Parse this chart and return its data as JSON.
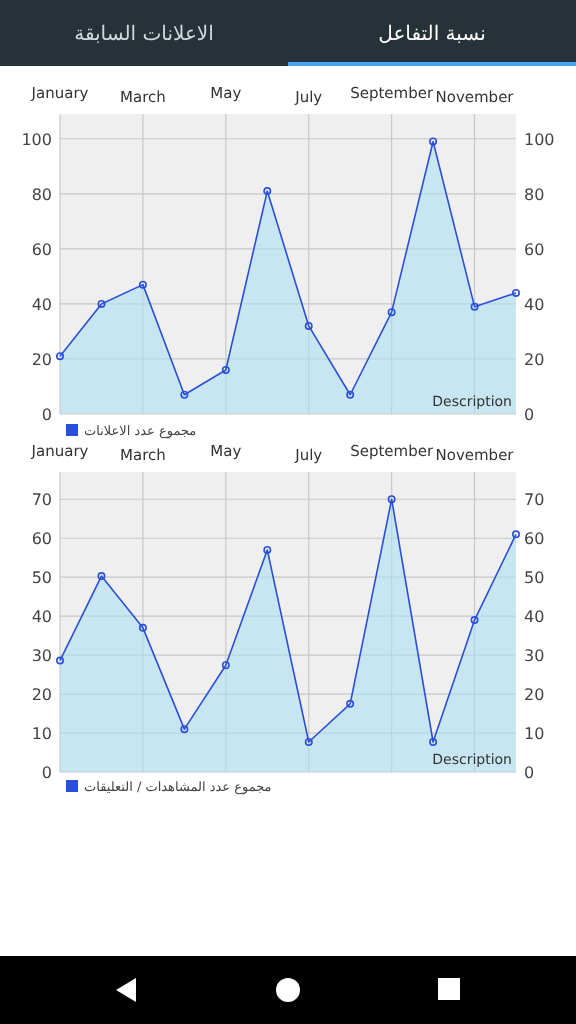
{
  "chart_data": [
    {
      "type": "area",
      "categories": [
        "January",
        null,
        "March",
        null,
        "May",
        null,
        "July",
        null,
        "September",
        null,
        "November",
        null
      ],
      "series": [
        {
          "name": "مجموع عدد الاعلانات",
          "color": "#2a4fd8",
          "values": [
            21,
            40,
            47,
            7,
            16,
            81,
            32,
            7,
            37,
            99,
            39,
            44
          ]
        }
      ],
      "ylim": [
        0,
        109
      ],
      "yticks": [
        0,
        20,
        40,
        60,
        80,
        100
      ],
      "y2lim": [
        0,
        109
      ],
      "y2ticks": [
        0,
        20,
        40,
        60,
        80,
        100
      ],
      "grid": true,
      "legend": "bottom left",
      "marker": "circle",
      "annotations": [
        "نسبة التفاعل",
        "الاعلانات السابقة",
        "Description"
      ]
    },
    {
      "type": "area",
      "categories": [
        "January",
        null,
        "March",
        null,
        "May",
        null,
        "July",
        null,
        "September",
        null,
        "November",
        null
      ],
      "series": [
        {
          "name": "مجموع عدد المشاهدات / التعليقات",
          "color": "#2a4fd8",
          "values": [
            28.6,
            50.3,
            37,
            11,
            27.4,
            57,
            7.7,
            17.5,
            70,
            7.7,
            39,
            61
          ]
        }
      ],
      "ylim": [
        0,
        77
      ],
      "yticks": [
        0,
        10,
        20,
        30,
        40,
        50,
        60,
        70
      ],
      "y2lim": [
        0,
        77
      ],
      "y2ticks": [
        0,
        10,
        20,
        30,
        40,
        50,
        60,
        70
      ],
      "grid": true,
      "legend": "bottom left",
      "marker": "circle",
      "annotations": [
        "Description"
      ]
    }
  ]
}
